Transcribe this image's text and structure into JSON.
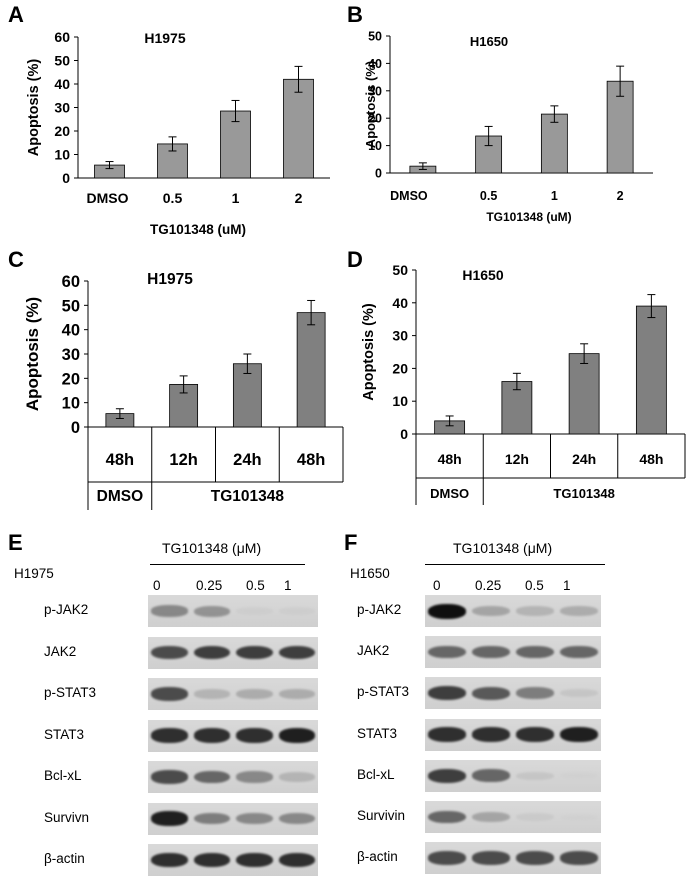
{
  "panels": {
    "A": "A",
    "B": "B",
    "C": "C",
    "D": "D",
    "E": "E",
    "F": "F"
  },
  "chart_data": [
    {
      "panel": "A",
      "type": "bar",
      "title": "H1975",
      "ylabel": "Apoptosis (%)",
      "xlabel": "TG101348 (uM)",
      "categories": [
        "DMSO",
        "0.5",
        "1",
        "2"
      ],
      "values": [
        5.5,
        14.5,
        28.5,
        42
      ],
      "errors": [
        1.5,
        3,
        4.5,
        5.5
      ],
      "ylim": [
        0,
        60
      ],
      "yticks": [
        "0",
        "10",
        "20",
        "30",
        "40",
        "50",
        "60"
      ],
      "bar_color": "#999999"
    },
    {
      "panel": "B",
      "type": "bar",
      "title": "H1650",
      "ylabel": "Apoptosis (%)",
      "xlabel": "TG101348 (uM)",
      "categories": [
        "DMSO",
        "0.5",
        "1",
        "2"
      ],
      "values": [
        2.5,
        13.5,
        21.5,
        33.5
      ],
      "errors": [
        1.2,
        3.5,
        3,
        5.5
      ],
      "ylim": [
        0,
        50
      ],
      "yticks": [
        "0",
        "10",
        "20",
        "30",
        "40",
        "50"
      ],
      "bar_color": "#999999"
    },
    {
      "panel": "C",
      "type": "bar",
      "title": "H1975",
      "ylabel": "Apoptosis (%)",
      "categories": [
        "48h",
        "12h",
        "24h",
        "48h"
      ],
      "groups": [
        {
          "label": "DMSO",
          "span": 1
        },
        {
          "label": "TG101348",
          "span": 3
        }
      ],
      "values": [
        5.5,
        17.5,
        26,
        47
      ],
      "errors": [
        2,
        3.5,
        4,
        5
      ],
      "ylim": [
        0,
        60
      ],
      "yticks": [
        "0",
        "10",
        "20",
        "30",
        "40",
        "50",
        "60"
      ],
      "bar_color": "#808080"
    },
    {
      "panel": "D",
      "type": "bar",
      "title": "H1650",
      "ylabel": "Apoptosis (%)",
      "categories": [
        "48h",
        "12h",
        "24h",
        "48h"
      ],
      "groups": [
        {
          "label": "DMSO",
          "span": 1
        },
        {
          "label": "TG101348",
          "span": 3
        }
      ],
      "values": [
        4,
        16,
        24.5,
        39
      ],
      "errors": [
        1.5,
        2.5,
        3,
        3.5
      ],
      "ylim": [
        0,
        50
      ],
      "yticks": [
        "0",
        "10",
        "20",
        "30",
        "40",
        "50"
      ],
      "bar_color": "#808080"
    }
  ],
  "blots": [
    {
      "panel": "E",
      "cell": "H1975",
      "treatment": "TG101348 (μM)",
      "doses": [
        "0",
        "0.25",
        "0.5",
        "1"
      ],
      "rows": [
        {
          "label": "p-JAK2",
          "intensity": [
            0.55,
            0.5,
            0.05,
            0.05
          ]
        },
        {
          "label": "JAK2",
          "intensity": [
            0.8,
            0.85,
            0.85,
            0.85
          ]
        },
        {
          "label": "p-STAT3",
          "intensity": [
            0.8,
            0.3,
            0.35,
            0.35
          ]
        },
        {
          "label": "STAT3",
          "intensity": [
            0.9,
            0.9,
            0.9,
            0.95
          ]
        },
        {
          "label": "Bcl-xL",
          "intensity": [
            0.8,
            0.7,
            0.55,
            0.3
          ]
        },
        {
          "label": "Survivn",
          "intensity": [
            0.95,
            0.6,
            0.55,
            0.55
          ]
        },
        {
          "label": "β-actin",
          "intensity": [
            0.9,
            0.9,
            0.9,
            0.9
          ]
        }
      ]
    },
    {
      "panel": "F",
      "cell": "H1650",
      "treatment": "TG101348 (μM)",
      "doses": [
        "0",
        "0.25",
        "0.5",
        "1"
      ],
      "rows": [
        {
          "label": "p-JAK2",
          "intensity": [
            1.0,
            0.4,
            0.3,
            0.35
          ]
        },
        {
          "label": "JAK2",
          "intensity": [
            0.7,
            0.7,
            0.7,
            0.7
          ]
        },
        {
          "label": "p-STAT3",
          "intensity": [
            0.85,
            0.75,
            0.6,
            0.15
          ]
        },
        {
          "label": "STAT3",
          "intensity": [
            0.9,
            0.9,
            0.9,
            0.95
          ]
        },
        {
          "label": "Bcl-xL",
          "intensity": [
            0.85,
            0.7,
            0.15,
            0.0
          ]
        },
        {
          "label": "Survivin",
          "intensity": [
            0.7,
            0.4,
            0.1,
            0.0
          ]
        },
        {
          "label": "β-actin",
          "intensity": [
            0.8,
            0.8,
            0.8,
            0.8
          ]
        }
      ]
    }
  ]
}
